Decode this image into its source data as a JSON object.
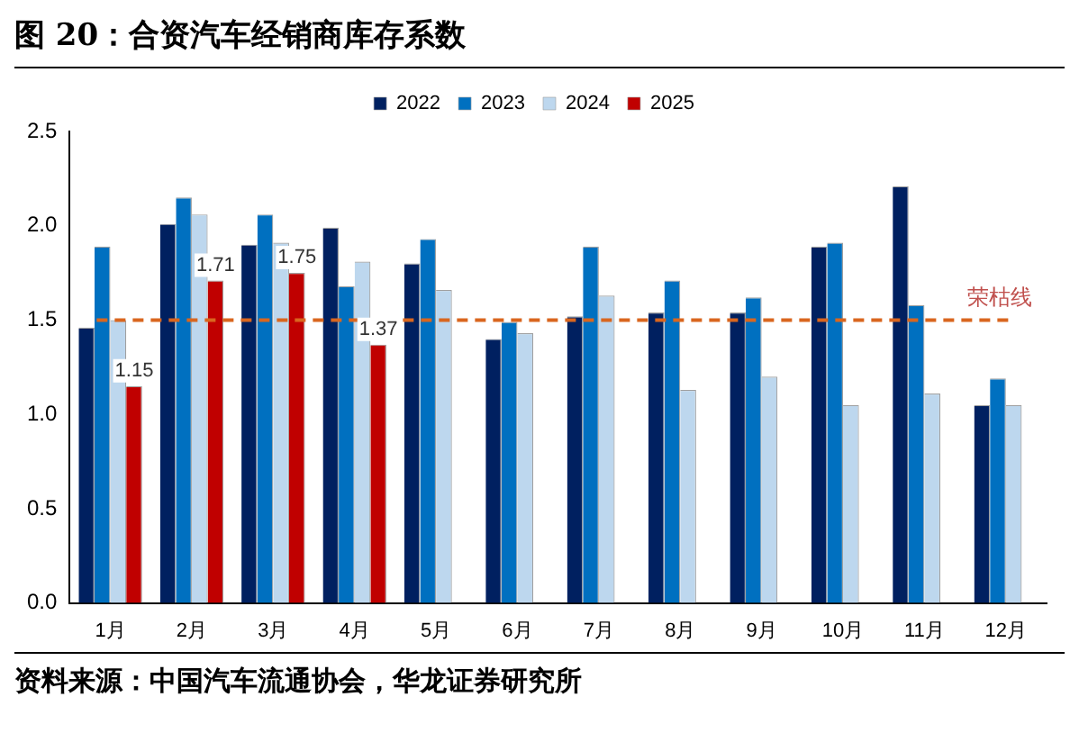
{
  "chart_data": {
    "type": "bar",
    "title": "图 20：合资汽车经销商库存系数",
    "categories": [
      "1月",
      "2月",
      "3月",
      "4月",
      "5月",
      "6月",
      "7月",
      "8月",
      "9月",
      "10月",
      "11月",
      "12月"
    ],
    "series": [
      {
        "name": "2022",
        "color": "#002060",
        "values": [
          1.46,
          2.01,
          1.9,
          1.99,
          1.8,
          1.4,
          1.52,
          1.54,
          1.54,
          1.89,
          2.21,
          1.05
        ]
      },
      {
        "name": "2023",
        "color": "#0070c0",
        "values": [
          1.89,
          2.15,
          2.06,
          1.68,
          1.93,
          1.49,
          1.89,
          1.71,
          1.62,
          1.91,
          1.58,
          1.19
        ]
      },
      {
        "name": "2024",
        "color": "#bdd7ee",
        "values": [
          1.5,
          2.06,
          1.91,
          1.81,
          1.66,
          1.43,
          1.63,
          1.13,
          1.2,
          1.05,
          1.11,
          1.05
        ]
      },
      {
        "name": "2025",
        "color": "#c00000",
        "values": [
          1.15,
          1.71,
          1.75,
          1.37,
          null,
          null,
          null,
          null,
          null,
          null,
          null,
          null
        ],
        "value_labels": [
          "1.15",
          "1.71",
          "1.75",
          "1.37",
          null,
          null,
          null,
          null,
          null,
          null,
          null,
          null
        ]
      }
    ],
    "ylim": [
      0,
      2.5
    ],
    "yticks": [
      {
        "value": 0,
        "label": "0.0"
      },
      {
        "value": 0.5,
        "label": "0.5"
      },
      {
        "value": 1,
        "label": "1.0"
      },
      {
        "value": 1.5,
        "label": "1.5"
      },
      {
        "value": 2,
        "label": "2.0"
      },
      {
        "value": 2.5,
        "label": "2.5"
      }
    ],
    "grid": false,
    "legend": "top",
    "ref_lines": [
      {
        "axis": "y",
        "value": 1.5,
        "label": "荣枯线",
        "color": "#d9661f",
        "line_style": "dashed"
      }
    ],
    "annotations": [
      "资料来源：中国汽车流通协会，华龙证券研究所"
    ]
  }
}
